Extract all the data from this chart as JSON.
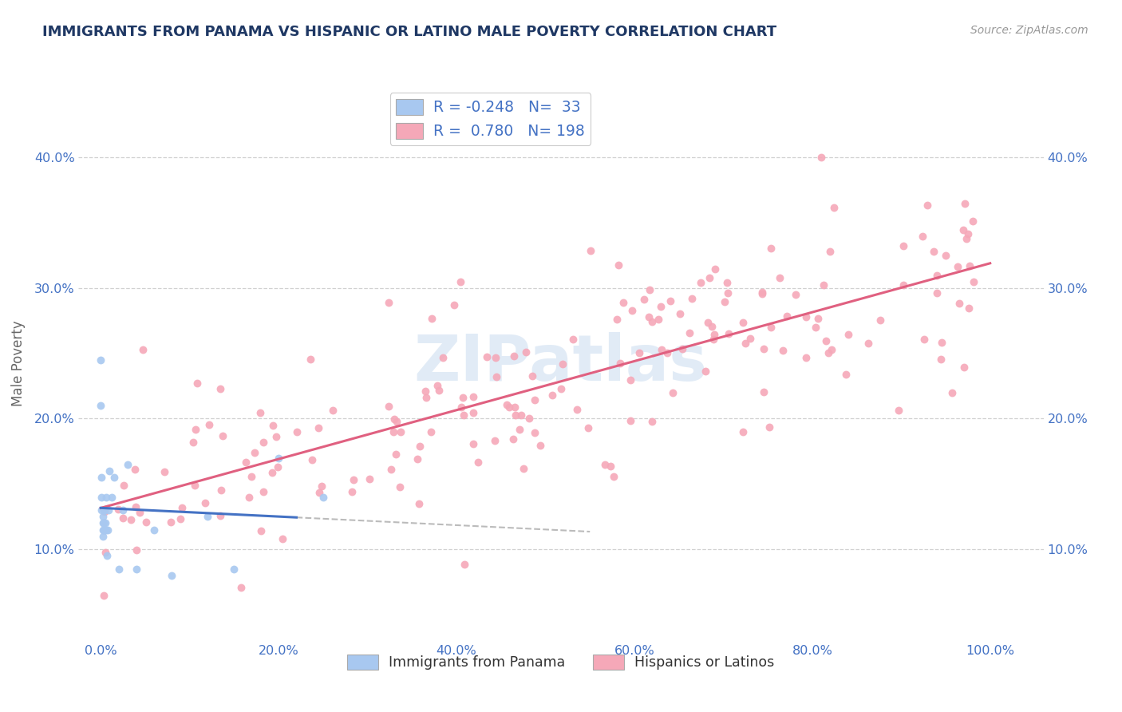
{
  "title": "IMMIGRANTS FROM PANAMA VS HISPANIC OR LATINO MALE POVERTY CORRELATION CHART",
  "source_text": "Source: ZipAtlas.com",
  "ylabel": "Male Poverty",
  "blue_R": -0.248,
  "blue_N": 33,
  "pink_R": 0.78,
  "pink_N": 198,
  "blue_color": "#A8C8F0",
  "pink_color": "#F5A8B8",
  "blue_line_color": "#4472C4",
  "pink_line_color": "#E06080",
  "title_color": "#1F3864",
  "axis_label_color": "#666666",
  "tick_label_color": "#4472C4",
  "source_color": "#999999",
  "background_color": "#FFFFFF",
  "grid_color": "#CCCCCC",
  "xlim": [
    -0.025,
    1.06
  ],
  "ylim": [
    0.03,
    0.455
  ],
  "xticks": [
    0.0,
    0.2,
    0.4,
    0.6,
    0.8,
    1.0
  ],
  "xtick_labels": [
    "0.0%",
    "20.0%",
    "40.0%",
    "60.0%",
    "80.0%",
    "100.0%"
  ],
  "yticks": [
    0.1,
    0.2,
    0.3,
    0.4
  ],
  "ytick_labels": [
    "10.0%",
    "20.0%",
    "30.0%",
    "40.0%"
  ],
  "blue_scatter_x": [
    0.0,
    0.0,
    0.001,
    0.001,
    0.001,
    0.002,
    0.002,
    0.002,
    0.002,
    0.003,
    0.003,
    0.003,
    0.004,
    0.004,
    0.005,
    0.006,
    0.006,
    0.007,
    0.008,
    0.009,
    0.01,
    0.012,
    0.015,
    0.02,
    0.025,
    0.03,
    0.04,
    0.06,
    0.08,
    0.12,
    0.15,
    0.2,
    0.25
  ],
  "blue_scatter_y": [
    0.245,
    0.21,
    0.155,
    0.14,
    0.13,
    0.125,
    0.12,
    0.115,
    0.11,
    0.13,
    0.12,
    0.115,
    0.13,
    0.115,
    0.12,
    0.115,
    0.14,
    0.095,
    0.115,
    0.13,
    0.16,
    0.14,
    0.155,
    0.085,
    0.13,
    0.165,
    0.085,
    0.115,
    0.08,
    0.125,
    0.085,
    0.17,
    0.14
  ]
}
